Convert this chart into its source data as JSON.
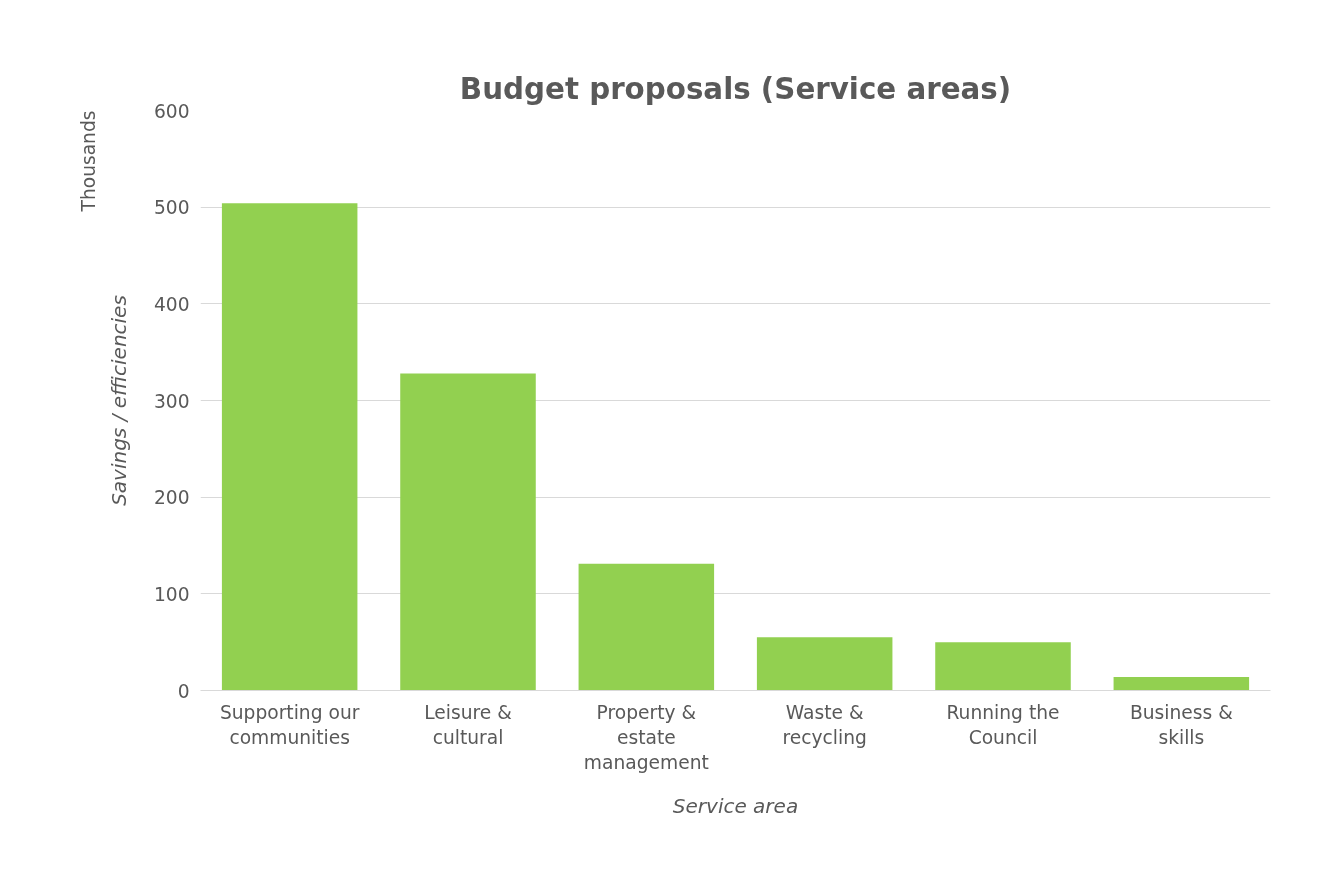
{
  "chart_data": {
    "type": "bar",
    "title": "Budget proposals (Service areas)",
    "xlabel": "Service area",
    "ylabel": "Savings / efficiencies",
    "annotations": [
      "Thousands"
    ],
    "categories": [
      "Supporting our communities",
      "Leisure & cultural",
      "Property & estate management",
      "Waste & recycling",
      "Running the Council",
      "Business & skills"
    ],
    "values": [
      504,
      328,
      131,
      55,
      50,
      14
    ],
    "color": "#92d050",
    "ylim": [
      0,
      600
    ],
    "yticks": [
      0,
      100,
      200,
      300,
      400,
      500,
      600
    ],
    "grid": "y",
    "legend": false
  }
}
